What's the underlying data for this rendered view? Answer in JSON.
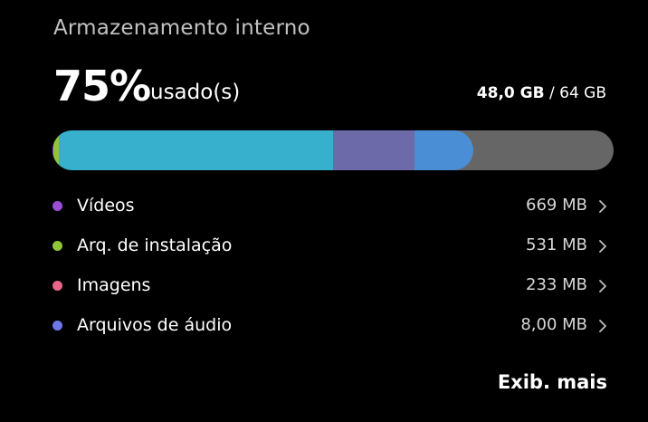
{
  "title": "Armazenamento interno",
  "usage": {
    "percent_label": "75%",
    "suffix_label": "usado(s)",
    "used": "48,0 GB",
    "separator": "/",
    "total": "64 GB"
  },
  "storage_bar": {
    "used_fraction": 0.75,
    "track_color": "#666666",
    "segments": [
      {
        "fraction": 0.0019,
        "color": "#9a4fd6"
      },
      {
        "fraction": 0.0097,
        "color": "#8fc43a"
      },
      {
        "fraction": 0.4903,
        "color": "#36b0cc"
      },
      {
        "fraction": 0.1452,
        "color": "#6c6aa8"
      },
      {
        "fraction": 0.1048,
        "color": "#4a8fd6"
      }
    ]
  },
  "categories": [
    {
      "name": "Vídeos",
      "size": "669 MB",
      "color": "#9a4fd6"
    },
    {
      "name": "Arq. de instalação",
      "size": "531 MB",
      "color": "#8fc43a"
    },
    {
      "name": "Imagens",
      "size": "233 MB",
      "color": "#e8668a"
    },
    {
      "name": "Arquivos de áudio",
      "size": "8,00 MB",
      "color": "#6c78e6"
    }
  ],
  "icons": {
    "row_chevron": "chevron-right-icon"
  },
  "more_label": "Exib. mais"
}
